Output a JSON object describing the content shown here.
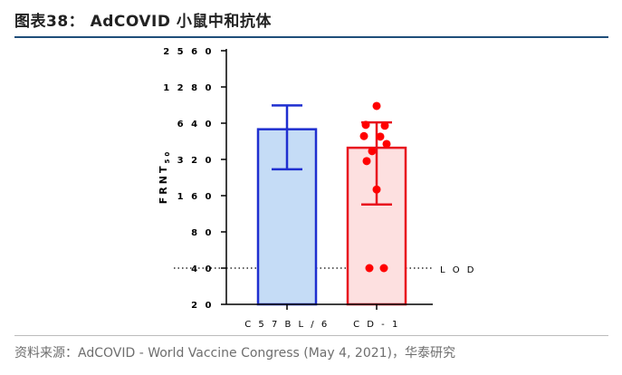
{
  "header": {
    "figure_title": "图表38：  AdCOVID 小鼠中和抗体"
  },
  "footer": {
    "source": "资料来源：AdCOVID - World Vaccine Congress (May 4, 2021)，华泰研究"
  },
  "chart_data": {
    "type": "bar",
    "yscale": "log2",
    "ylabel": "FRNT",
    "ylabel_subscript": "50",
    "ylim": [
      20,
      2560
    ],
    "yticks": [
      20,
      40,
      80,
      160,
      320,
      640,
      1280,
      2560
    ],
    "ytick_labels": [
      "2 0",
      "4 0",
      "8 0",
      "1 6 0",
      "3 2 0",
      "6 4 0",
      "1 2 8 0",
      "2 5 6 0"
    ],
    "categories": [
      "C 5 7 B L / 6",
      "C D - 1"
    ],
    "bars": [
      {
        "category": "C 5 7 B L / 6",
        "value": 570,
        "error_low": 265,
        "error_high": 900,
        "fill": "#c5dcf6",
        "edge": "#1f2fd0",
        "points": []
      },
      {
        "category": "C D - 1",
        "value": 400,
        "error_low": 135,
        "error_high": 650,
        "fill": "#fde0e0",
        "edge": "#e8101e",
        "points": [
          {
            "x_offset": 0,
            "y": 890
          },
          {
            "x_offset": -12,
            "y": 620
          },
          {
            "x_offset": 9,
            "y": 610
          },
          {
            "x_offset": -14,
            "y": 500
          },
          {
            "x_offset": 4,
            "y": 495
          },
          {
            "x_offset": 11,
            "y": 430
          },
          {
            "x_offset": -5,
            "y": 375
          },
          {
            "x_offset": -11,
            "y": 310
          },
          {
            "x_offset": 0,
            "y": 180
          },
          {
            "x_offset": -8,
            "y": 40
          },
          {
            "x_offset": 8,
            "y": 40
          }
        ]
      }
    ],
    "reference_line": {
      "value": 40,
      "label": "L O D",
      "style": "dotted"
    },
    "point_color": "#ff0000"
  }
}
